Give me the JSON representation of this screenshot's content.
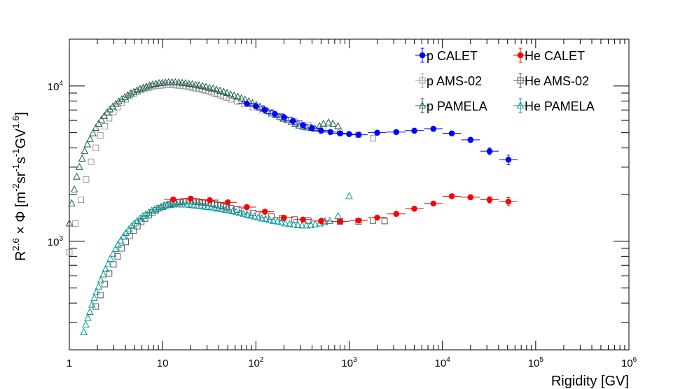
{
  "chart_data": {
    "type": "scatter",
    "xscale": "log",
    "yscale": "log",
    "xlim": [
      1,
      1000000
    ],
    "ylim": [
      200,
      20000
    ],
    "x_ticks": [
      {
        "value": 1,
        "base": "1",
        "exp": ""
      },
      {
        "value": 10,
        "base": "10",
        "exp": ""
      },
      {
        "value": 100,
        "base": "10",
        "exp": "2"
      },
      {
        "value": 1000,
        "base": "10",
        "exp": "3"
      },
      {
        "value": 10000,
        "base": "10",
        "exp": "4"
      },
      {
        "value": 100000,
        "base": "10",
        "exp": "5"
      },
      {
        "value": 1000000,
        "base": "10",
        "exp": "6"
      }
    ],
    "y_ticks": [
      {
        "value": 1000,
        "base": "10",
        "exp": "3"
      },
      {
        "value": 10000,
        "base": "10",
        "exp": "4"
      }
    ],
    "xlabel": "Rigidity [GV]",
    "ylabel": {
      "r": "R",
      "r_exp": "2.6",
      "times": " × Φ [m",
      "m_exp": "-2",
      "sr": "sr",
      "sr_exp": "-1",
      "s": "s",
      "s_exp": "-1",
      "gv": "GV",
      "gv_exp": "1.6",
      "close": "]"
    },
    "legend": {
      "placement": "top-right",
      "entries": [
        {
          "label": "p CALET",
          "series": "p_calet"
        },
        {
          "label": "He CALET",
          "series": "he_calet"
        },
        {
          "label": "p AMS-02",
          "series": "p_ams"
        },
        {
          "label": "He AMS-02",
          "series": "he_ams"
        },
        {
          "label": "p PAMELA",
          "series": "p_pamela"
        },
        {
          "label": "He PAMELA",
          "series": "he_pamela"
        }
      ]
    },
    "series": [
      {
        "id": "p_calet",
        "name": "p CALET",
        "marker": "filled-circle",
        "color": "#0000ff",
        "x": [
          80,
          100,
          125,
          160,
          200,
          250,
          320,
          400,
          500,
          630,
          800,
          1000,
          1260,
          2000,
          3200,
          5000,
          8000,
          12600,
          20000,
          32000,
          51000
        ],
        "y": [
          7700,
          7400,
          7000,
          6600,
          6300,
          5950,
          5600,
          5350,
          5150,
          5050,
          4950,
          4900,
          4850,
          5000,
          5050,
          5150,
          5300,
          4950,
          4500,
          3800,
          3350
        ],
        "xerr": [
          0.1,
          0.1,
          0.1,
          0.1,
          0.1,
          0.1,
          0.1,
          0.1,
          0.1,
          0.1,
          0.1,
          0.1,
          0.1,
          0.1,
          0.1,
          0.1,
          0.1,
          0.1,
          0.1,
          0.1,
          0.1
        ],
        "yerr": [
          0.01,
          0.01,
          0.01,
          0.01,
          0.01,
          0.01,
          0.01,
          0.01,
          0.01,
          0.01,
          0.01,
          0.01,
          0.015,
          0.015,
          0.015,
          0.02,
          0.02,
          0.025,
          0.035,
          0.05,
          0.07
        ]
      },
      {
        "id": "he_calet",
        "name": "He CALET",
        "marker": "filled-circle",
        "color": "#ff0000",
        "x": [
          13,
          20,
          32,
          50,
          80,
          125,
          200,
          320,
          500,
          800,
          1260,
          2000,
          3200,
          5000,
          8000,
          12600,
          20000,
          32000,
          51000
        ],
        "y": [
          1860,
          1880,
          1840,
          1780,
          1660,
          1550,
          1420,
          1380,
          1350,
          1340,
          1360,
          1420,
          1500,
          1620,
          1750,
          1950,
          1920,
          1850,
          1800
        ],
        "xerr": [
          0.1,
          0.1,
          0.1,
          0.1,
          0.1,
          0.1,
          0.1,
          0.1,
          0.1,
          0.1,
          0.1,
          0.1,
          0.1,
          0.1,
          0.1,
          0.1,
          0.1,
          0.1,
          0.1
        ],
        "yerr": [
          0.01,
          0.01,
          0.01,
          0.01,
          0.01,
          0.01,
          0.015,
          0.015,
          0.015,
          0.015,
          0.02,
          0.02,
          0.02,
          0.025,
          0.025,
          0.03,
          0.035,
          0.045,
          0.06
        ]
      },
      {
        "id": "p_ams",
        "name": "p AMS-02",
        "marker": "open-square",
        "color": "#9a9a9a",
        "x": [
          1.0,
          1.16,
          1.33,
          1.51,
          1.71,
          1.92,
          2.15,
          2.4,
          2.67,
          2.97,
          3.29,
          3.64,
          4.02,
          4.43,
          4.88,
          5.37,
          5.9,
          6.47,
          7.09,
          7.76,
          8.48,
          9.26,
          10.1,
          11.0,
          12.0,
          13.0,
          14.1,
          15.3,
          16.6,
          18.0,
          19.5,
          21.1,
          22.8,
          24.7,
          26.7,
          28.8,
          31.1,
          33.5,
          36.1,
          38.9,
          41.9,
          45.1,
          48.5,
          54.0,
          63.0,
          75.0,
          93.0,
          118,
          147,
          192,
          259,
          364,
          525,
          800,
          1260,
          1800
        ],
        "y": [
          850,
          1300,
          1850,
          2500,
          3250,
          4000,
          4800,
          5500,
          6200,
          6800,
          7300,
          7800,
          8200,
          8600,
          8900,
          9150,
          9400,
          9600,
          9750,
          9900,
          10000,
          10050,
          10100,
          10150,
          10150,
          10150,
          10100,
          10050,
          10000,
          9950,
          9850,
          9750,
          9650,
          9550,
          9450,
          9350,
          9250,
          9100,
          8950,
          8850,
          8700,
          8550,
          8400,
          8200,
          7950,
          7650,
          7300,
          6950,
          6600,
          6250,
          5900,
          5600,
          5300,
          5050,
          4850,
          4600
        ]
      },
      {
        "id": "he_ams",
        "name": "He AMS-02",
        "marker": "open-square",
        "color": "#555555",
        "x": [
          1.92,
          2.15,
          2.4,
          2.67,
          2.97,
          3.29,
          3.64,
          4.02,
          4.43,
          4.88,
          5.37,
          5.9,
          6.47,
          7.09,
          7.76,
          8.48,
          9.26,
          10.1,
          11.0,
          12.0,
          13.0,
          14.1,
          15.3,
          16.6,
          18.0,
          19.5,
          21.1,
          22.8,
          24.7,
          26.7,
          28.8,
          31.1,
          33.5,
          36.1,
          38.9,
          41.9,
          45.1,
          48.5,
          54.0,
          63.0,
          75.0,
          93.0,
          118,
          147,
          192,
          259,
          364,
          525,
          800,
          1260,
          1800,
          2400
        ],
        "y": [
          380,
          450,
          530,
          620,
          710,
          800,
          900,
          990,
          1080,
          1170,
          1250,
          1330,
          1400,
          1470,
          1530,
          1580,
          1630,
          1670,
          1710,
          1740,
          1760,
          1780,
          1790,
          1800,
          1810,
          1810,
          1810,
          1800,
          1790,
          1780,
          1770,
          1760,
          1750,
          1730,
          1710,
          1700,
          1680,
          1660,
          1630,
          1600,
          1560,
          1520,
          1480,
          1440,
          1410,
          1380,
          1360,
          1350,
          1340,
          1340,
          1360,
          1350
        ]
      },
      {
        "id": "p_pamela",
        "name": "p PAMELA",
        "marker": "open-triangle",
        "color": "#1e5e50",
        "x": [
          1.0,
          1.06,
          1.13,
          1.2,
          1.28,
          1.37,
          1.46,
          1.56,
          1.67,
          1.79,
          1.92,
          2.06,
          2.21,
          2.37,
          2.54,
          2.73,
          2.93,
          3.15,
          3.39,
          3.65,
          3.93,
          4.23,
          4.56,
          4.92,
          5.31,
          5.73,
          6.19,
          6.69,
          7.23,
          7.82,
          8.46,
          9.16,
          9.92,
          10.7,
          11.6,
          12.6,
          13.7,
          14.9,
          16.2,
          17.6,
          19.1,
          20.8,
          22.6,
          24.6,
          26.8,
          29.2,
          31.8,
          34.7,
          37.8,
          41.2,
          45.0,
          49.1,
          53.6,
          58.5,
          64.0,
          70.0,
          76.5,
          84.0,
          92.0,
          101,
          111,
          122,
          134,
          148,
          163,
          180,
          198,
          218,
          240,
          265,
          290,
          320,
          350,
          390,
          430,
          480,
          530,
          600,
          670,
          760
        ],
        "y": [
          1300,
          1750,
          2150,
          2600,
          3000,
          3400,
          3800,
          4200,
          4550,
          4950,
          5350,
          5700,
          6050,
          6400,
          6750,
          7050,
          7350,
          7650,
          7950,
          8200,
          8450,
          8700,
          8950,
          9150,
          9350,
          9550,
          9700,
          9900,
          10050,
          10200,
          10300,
          10400,
          10450,
          10500,
          10550,
          10550,
          10550,
          10500,
          10450,
          10400,
          10300,
          10250,
          10150,
          10050,
          9950,
          9850,
          9700,
          9600,
          9450,
          9300,
          9150,
          9000,
          8800,
          8650,
          8500,
          8300,
          8150,
          7950,
          7750,
          7550,
          7350,
          7100,
          6900,
          6700,
          6500,
          6300,
          6150,
          6000,
          5850,
          5700,
          5550,
          5450,
          5400,
          5350,
          5300,
          5500,
          5700,
          5800,
          5700,
          5500
        ]
      },
      {
        "id": "he_pamela",
        "name": "He PAMELA",
        "marker": "open-triangle",
        "color": "#009999",
        "x": [
          1.43,
          1.5,
          1.58,
          1.66,
          1.75,
          1.85,
          1.95,
          2.06,
          2.18,
          2.31,
          2.45,
          2.6,
          2.76,
          2.94,
          3.13,
          3.34,
          3.56,
          3.8,
          4.06,
          4.34,
          4.65,
          4.98,
          5.34,
          5.73,
          6.15,
          6.61,
          7.11,
          7.65,
          8.24,
          8.88,
          9.58,
          10.3,
          11.2,
          12.1,
          13.1,
          14.2,
          15.4,
          16.7,
          18.2,
          19.8,
          21.5,
          23.4,
          25.5,
          27.8,
          30.3,
          33.0,
          36.0,
          39.3,
          42.9,
          46.9,
          51.3,
          56.1,
          61.4,
          67.2,
          73.6,
          80.6,
          88.3,
          96.8,
          106,
          116,
          127,
          140,
          154,
          170,
          187,
          207,
          229,
          254,
          282,
          313,
          348,
          388,
          433,
          484,
          545,
          620,
          760,
          1000
        ],
        "y": [
          260,
          290,
          320,
          350,
          390,
          430,
          470,
          510,
          560,
          610,
          660,
          710,
          770,
          830,
          890,
          950,
          1010,
          1070,
          1130,
          1190,
          1250,
          1300,
          1350,
          1400,
          1450,
          1490,
          1530,
          1570,
          1600,
          1630,
          1660,
          1680,
          1700,
          1710,
          1720,
          1720,
          1720,
          1720,
          1720,
          1710,
          1700,
          1690,
          1680,
          1670,
          1660,
          1650,
          1640,
          1620,
          1610,
          1590,
          1580,
          1560,
          1540,
          1520,
          1500,
          1480,
          1460,
          1440,
          1420,
          1400,
          1390,
          1370,
          1350,
          1340,
          1320,
          1300,
          1290,
          1280,
          1270,
          1260,
          1260,
          1270,
          1280,
          1300,
          1320,
          1350,
          1450,
          1950
        ]
      }
    ]
  }
}
